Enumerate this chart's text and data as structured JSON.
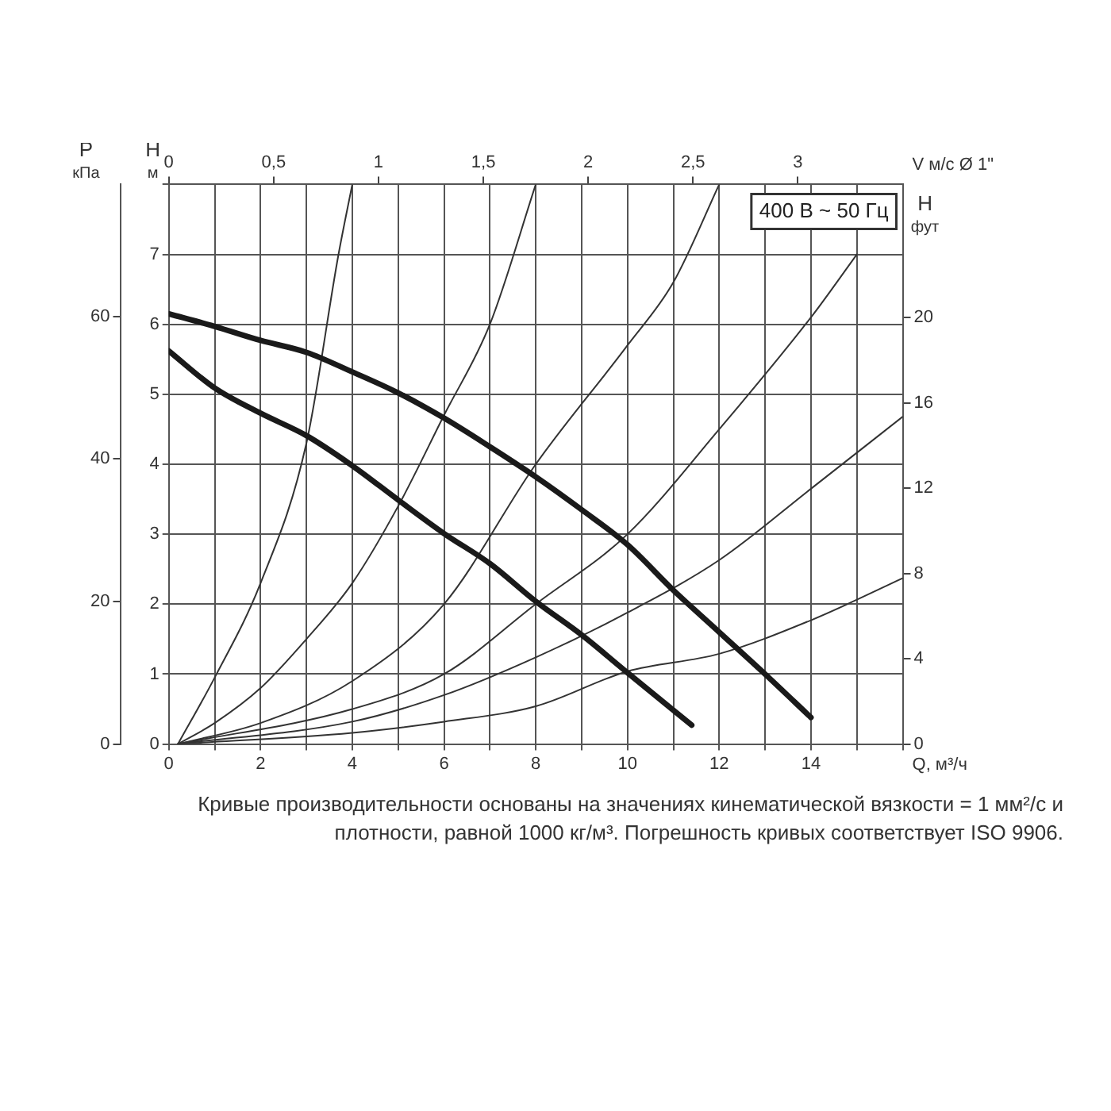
{
  "chart_data": {
    "type": "line",
    "xlabel": "Q, м³/ч",
    "ylabel": "H м",
    "y2label": "H фут",
    "y3label": "P кПа",
    "x2label": "V м/с Ø 1\"",
    "xlim": [
      0,
      16
    ],
    "xticks": [
      0,
      {
        "value": 1,
        "label": null
      },
      2,
      {
        "value": 3,
        "label": null
      },
      4,
      {
        "value": 5,
        "label": null
      },
      6,
      {
        "value": 7,
        "label": null
      },
      8,
      {
        "value": 9,
        "label": null
      },
      10,
      {
        "value": 11,
        "label": null
      },
      12,
      {
        "value": 13,
        "label": null
      },
      14,
      {
        "value": 15,
        "label": null
      },
      {
        "value": 16,
        "label": null
      }
    ],
    "ylim": [
      0,
      8
    ],
    "yticks": [
      0,
      1,
      2,
      3,
      4,
      5,
      6,
      7,
      {
        "value": 8,
        "label": null
      }
    ],
    "y2lim": [
      0,
      26.25
    ],
    "y2ticks": [
      0,
      4,
      8,
      12,
      16,
      20
    ],
    "y3lim": [
      0,
      78.5
    ],
    "y3ticks": [
      0,
      20,
      40,
      60
    ],
    "x2lim": [
      0,
      3.5
    ],
    "x2ticks": [
      0,
      {
        "value": 0.5,
        "label": "0,5"
      },
      1,
      {
        "value": 1.5,
        "label": "1,5"
      },
      2,
      {
        "value": 2.5,
        "label": "2,5"
      },
      3
    ],
    "series": [
      {
        "color": "#1a1a1a",
        "x": [
          0,
          1,
          2,
          3,
          4,
          5,
          6,
          7,
          8,
          9,
          10,
          11,
          12,
          13,
          14
        ],
        "values": [
          6.15,
          5.97,
          5.77,
          5.6,
          5.32,
          5.02,
          4.66,
          4.25,
          3.82,
          3.35,
          2.85,
          2.2,
          1.6,
          1.0,
          0.38
        ]
      },
      {
        "color": "#1a1a1a",
        "x": [
          0,
          1,
          2,
          3,
          4,
          5,
          6,
          7,
          8,
          9,
          10,
          11.4
        ],
        "values": [
          5.62,
          5.09,
          4.73,
          4.41,
          3.98,
          3.49,
          3.01,
          2.58,
          2.04,
          1.56,
          1.02,
          0.27
        ]
      },
      {
        "color": "#333333",
        "x": [
          0.2,
          1,
          2,
          3,
          3.7,
          4
        ],
        "values": [
          0,
          0.95,
          2.3,
          4.3,
          7,
          8
        ]
      },
      {
        "color": "#333333",
        "x": [
          0.2,
          1,
          2,
          3,
          4,
          5,
          6,
          7,
          8
        ],
        "values": [
          0,
          0.3,
          0.8,
          1.5,
          2.3,
          3.4,
          4.7,
          6,
          8
        ]
      },
      {
        "color": "#333333",
        "x": [
          0.2,
          2,
          4,
          6,
          8,
          10,
          11,
          12
        ],
        "values": [
          0,
          0.3,
          0.9,
          2,
          4,
          5.7,
          6.6,
          8
        ]
      },
      {
        "color": "#333333",
        "x": [
          0.2,
          4,
          6,
          8,
          10,
          12,
          14,
          15
        ],
        "values": [
          0,
          0.5,
          1,
          2,
          3,
          4.5,
          6.1,
          7
        ]
      },
      {
        "color": "#333333",
        "x": [
          0.2,
          4,
          6,
          8,
          10,
          12,
          14,
          16
        ],
        "values": [
          0,
          0.32,
          0.7,
          1.24,
          1.88,
          2.63,
          3.65,
          4.68
        ]
      },
      {
        "color": "#333333",
        "x": [
          0.2,
          4,
          6,
          8,
          10,
          12,
          14,
          16
        ],
        "values": [
          0,
          0.16,
          0.32,
          0.54,
          1.04,
          1.29,
          1.77,
          2.37
        ]
      }
    ],
    "grid": true,
    "legend": false,
    "marker": "none",
    "line_style": "solid",
    "annotations": [
      "400 В ~ 50 Гц",
      "Кривые производительности основаны на значениях кинематической вязкости = 1 мм²/с и плотности, равной 1000 кг/м³. Погрешность кривых соответствует ISO 9906."
    ]
  }
}
